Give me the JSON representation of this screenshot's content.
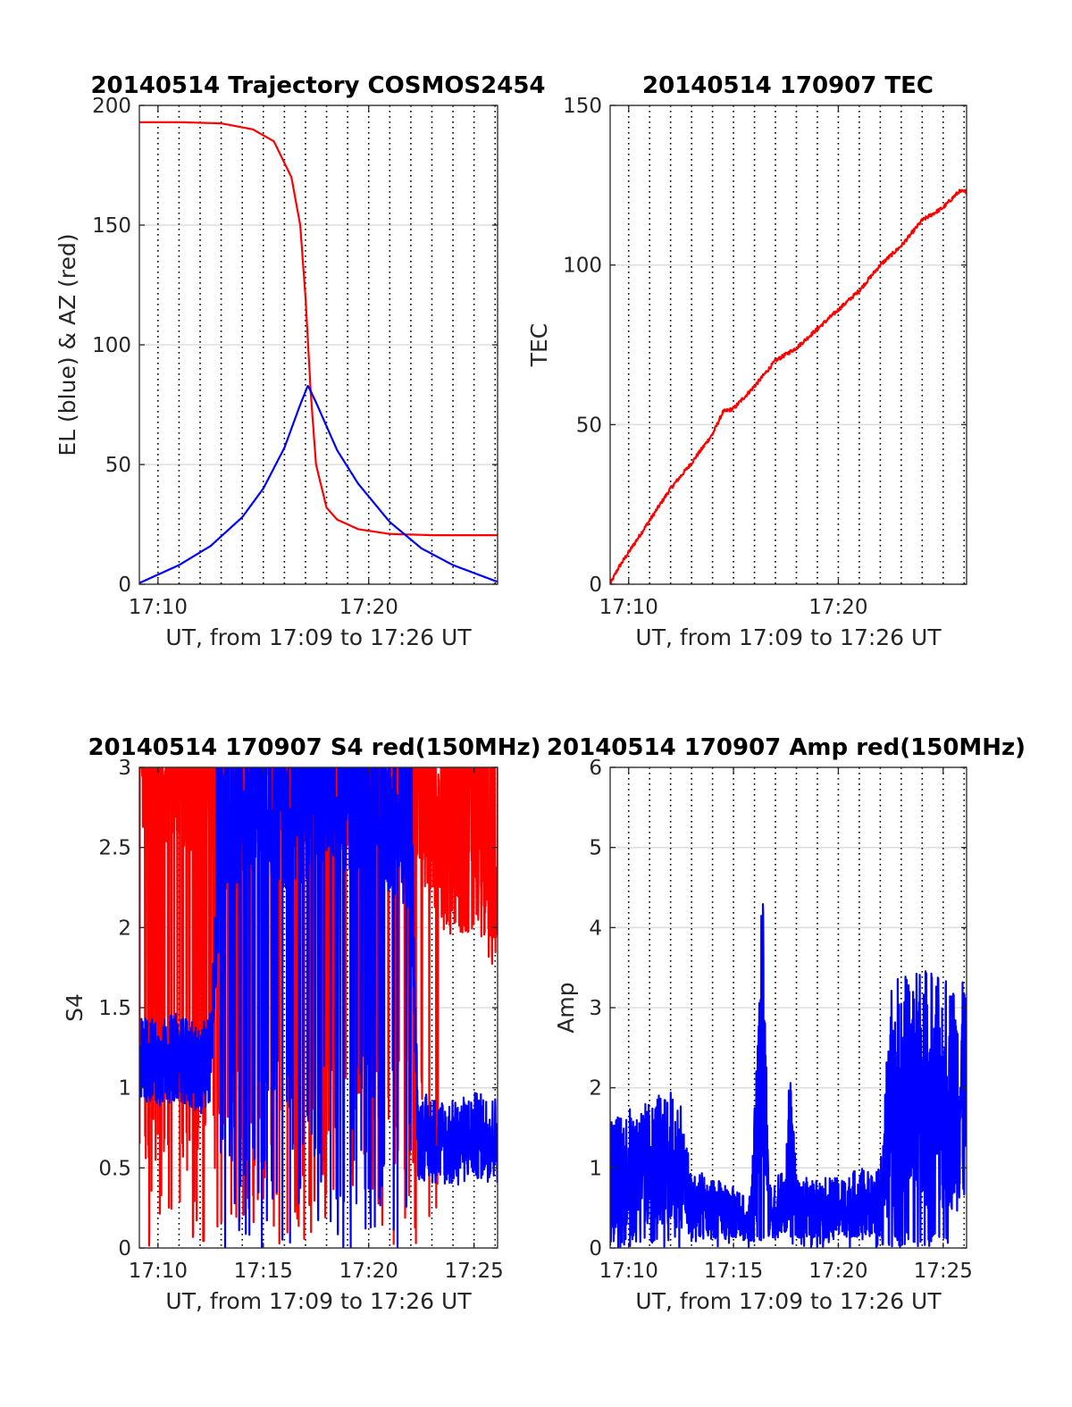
{
  "chart_data": [
    {
      "type": "line",
      "title": "20140514 Trajectory COSMOS2454",
      "xlabel": "UT, from 17:09 to 17:26 UT",
      "ylabel": "EL (blue) & AZ (red)",
      "xlim": [
        "17:09:07",
        "17:26:07"
      ],
      "ylim": [
        0,
        200
      ],
      "xticks": [
        "17:10",
        "17:20"
      ],
      "yticks": [
        0,
        50,
        100,
        150,
        200
      ],
      "x_grid": "dotted, every 1 min",
      "y_grid": true,
      "series": [
        {
          "color": "#ff0000",
          "x": [
            "17:09:07",
            "17:11:00",
            "17:13:00",
            "17:14:30",
            "17:15:30",
            "17:16:20",
            "17:16:45",
            "17:17:00",
            "17:17:15",
            "17:17:30",
            "17:18:00",
            "17:18:30",
            "17:19:30",
            "17:21:00",
            "17:23:00",
            "17:26:07"
          ],
          "values": [
            193,
            193,
            192.5,
            190,
            185,
            170,
            150,
            120,
            80,
            50,
            32,
            27,
            23,
            21,
            20.5,
            20.5
          ]
        },
        {
          "color": "#0000ff",
          "x": [
            "17:09:07",
            "17:11:00",
            "17:12:30",
            "17:14:00",
            "17:15:00",
            "17:16:00",
            "17:16:45",
            "17:17:07",
            "17:17:30",
            "17:18:30",
            "17:19:30",
            "17:21:00",
            "17:22:30",
            "17:24:00",
            "17:26:07"
          ],
          "values": [
            0.5,
            8,
            16,
            28,
            40,
            57,
            75,
            83,
            76,
            56,
            42,
            26,
            15,
            8,
            1
          ]
        }
      ]
    },
    {
      "type": "line",
      "title": "20140514 170907 TEC",
      "xlabel": "UT, from 17:09 to 17:26 UT",
      "ylabel": "TEC",
      "xlim": [
        "17:09:07",
        "17:26:07"
      ],
      "ylim": [
        0,
        150
      ],
      "xticks": [
        "17:10",
        "17:20"
      ],
      "yticks": [
        0,
        50,
        100,
        150
      ],
      "x_grid": "dotted, every 1 min",
      "y_grid": true,
      "series": [
        {
          "color": "#ff0000",
          "x": [
            "17:09:07",
            "17:09:30",
            "17:10:00",
            "17:11:00",
            "17:12:00",
            "17:13:00",
            "17:14:00",
            "17:14:30",
            "17:15:00",
            "17:16:00",
            "17:17:00",
            "17:18:00",
            "17:19:00",
            "17:20:00",
            "17:21:00",
            "17:22:00",
            "17:23:00",
            "17:24:00",
            "17:25:00",
            "17:25:45",
            "17:26:07"
          ],
          "values": [
            0,
            5,
            10,
            20,
            30,
            38,
            47,
            54,
            55,
            62,
            70,
            74,
            80,
            86,
            92,
            100,
            106,
            114,
            118,
            123,
            123
          ]
        }
      ]
    },
    {
      "type": "line",
      "title": "20140514 170907 S4 red(150MHz)",
      "xlabel": "UT, from 17:09 to 17:26 UT",
      "ylabel": "S4",
      "xlim": [
        "17:09:07",
        "17:26:07"
      ],
      "ylim": [
        0,
        3
      ],
      "xticks": [
        "17:10",
        "17:15",
        "17:20",
        "17:25"
      ],
      "yticks": [
        0,
        0.5,
        1,
        1.5,
        2,
        2.5,
        3
      ],
      "x_grid": "dotted, every 1 min",
      "y_grid": true,
      "series": [
        {
          "color": "#ff0000",
          "x": [
            "17:09:07",
            "17:10:00",
            "17:11:00",
            "17:12:00",
            "17:13:00",
            "17:14:00",
            "17:15:00",
            "17:16:00",
            "17:17:00",
            "17:18:00",
            "17:19:00",
            "17:20:00",
            "17:21:00",
            "17:22:00",
            "17:23:00",
            "17:24:00",
            "17:25:00",
            "17:26:07"
          ],
          "values": [
            3,
            3,
            3,
            2.9,
            3,
            3,
            3,
            3,
            3,
            3,
            3,
            3,
            3,
            3,
            2.6,
            2.4,
            2.5,
            2.2
          ]
        },
        {
          "color": "#0000ff",
          "x": [
            "17:09:07",
            "17:10:00",
            "17:11:00",
            "17:12:00",
            "17:12:30",
            "17:13:00",
            "17:14:00",
            "17:15:00",
            "17:16:00",
            "17:17:00",
            "17:18:00",
            "17:19:00",
            "17:20:00",
            "17:21:00",
            "17:22:00",
            "17:22:20",
            "17:23:00",
            "17:24:00",
            "17:25:00",
            "17:26:07"
          ],
          "values": [
            1.2,
            1.15,
            1.2,
            1.1,
            1.2,
            2.6,
            2.8,
            2.9,
            2.7,
            2.8,
            2.9,
            2.85,
            2.8,
            2.7,
            2.6,
            0.7,
            0.68,
            0.65,
            0.7,
            0.68
          ]
        }
      ]
    },
    {
      "type": "line",
      "title": "20140514 170907 Amp red(150MHz)",
      "xlabel": "UT, from 17:09 to 17:26 UT",
      "ylabel": "Amp",
      "xlim": [
        "17:09:07",
        "17:26:07"
      ],
      "ylim": [
        0,
        6
      ],
      "xticks": [
        "17:10",
        "17:15",
        "17:20",
        "17:25"
      ],
      "yticks": [
        0,
        1,
        2,
        3,
        4,
        5,
        6
      ],
      "x_grid": "dotted, every 1 min",
      "y_grid": true,
      "series": [
        {
          "color": "#0000ff",
          "x": [
            "17:09:07",
            "17:10:00",
            "17:11:00",
            "17:12:00",
            "17:12:30",
            "17:13:00",
            "17:14:00",
            "17:15:00",
            "17:15:50",
            "17:16:10",
            "17:16:25",
            "17:16:40",
            "17:17:00",
            "17:17:30",
            "17:17:40",
            "17:18:00",
            "17:19:00",
            "17:20:00",
            "17:21:00",
            "17:22:00",
            "17:22:30",
            "17:23:00",
            "17:24:00",
            "17:25:00",
            "17:26:07"
          ],
          "values": [
            1.5,
            1.6,
            1.7,
            1.8,
            1.6,
            0.9,
            0.8,
            0.7,
            0.6,
            2.5,
            4.6,
            0.7,
            0.8,
            0.9,
            2.2,
            0.8,
            0.8,
            0.8,
            0.9,
            0.9,
            3.0,
            3.1,
            3.2,
            3.1,
            3.0
          ]
        }
      ]
    }
  ]
}
